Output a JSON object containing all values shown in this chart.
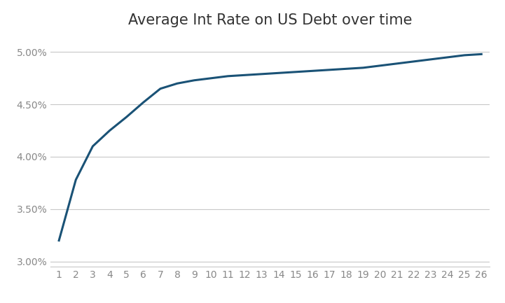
{
  "title": "Average Int Rate on US Debt over time",
  "x_values": [
    1,
    2,
    3,
    4,
    5,
    6,
    7,
    8,
    9,
    10,
    11,
    12,
    13,
    14,
    15,
    16,
    17,
    18,
    19,
    20,
    21,
    22,
    23,
    24,
    25,
    26
  ],
  "y_values": [
    0.32,
    0.378,
    0.41,
    0.425,
    0.438,
    0.452,
    0.465,
    0.47,
    0.473,
    0.475,
    0.477,
    0.478,
    0.479,
    0.48,
    0.481,
    0.482,
    0.483,
    0.484,
    0.485,
    0.487,
    0.489,
    0.491,
    0.493,
    0.495,
    0.497,
    0.498
  ],
  "line_color": "#1a5276",
  "line_width": 2.2,
  "ylim": [
    0.295,
    0.515
  ],
  "yticks": [
    0.3,
    0.35,
    0.4,
    0.45,
    0.5
  ],
  "ytick_labels": [
    "3.00%",
    "3.50%",
    "4.00%",
    "4.50%",
    "5.00%"
  ],
  "xlim": [
    0.5,
    26.5
  ],
  "xtick_labels": [
    "1",
    "2",
    "3",
    "4",
    "5",
    "6",
    "7",
    "8",
    "9",
    "10",
    "11",
    "12",
    "13",
    "14",
    "15",
    "16",
    "17",
    "18",
    "19",
    "20",
    "21",
    "22",
    "23",
    "24",
    "25",
    "26"
  ],
  "background_color": "#ffffff",
  "grid_color": "#c8c8c8",
  "title_fontsize": 15,
  "tick_fontsize": 10,
  "tick_color": "#888888"
}
